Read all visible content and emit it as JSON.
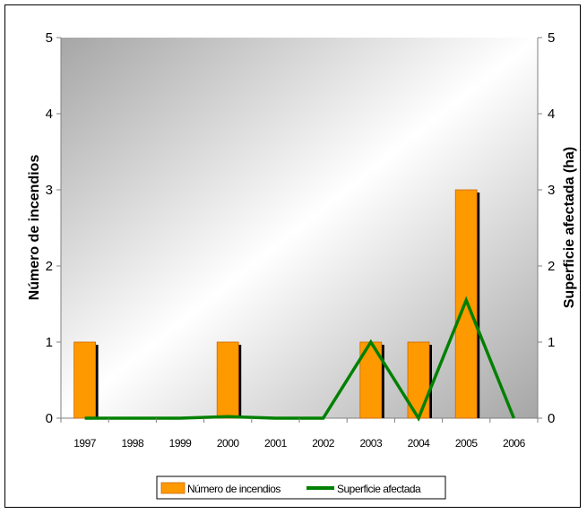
{
  "chart_data": {
    "type": "bar",
    "categories": [
      "1997",
      "1998",
      "1999",
      "2000",
      "2001",
      "2002",
      "2003",
      "2004",
      "2005",
      "2006"
    ],
    "series": [
      {
        "name": "Número de incendios",
        "type": "bar",
        "axis": "left",
        "color": "#FF9900",
        "values": [
          1,
          0,
          0,
          1,
          0,
          0,
          1,
          1,
          3,
          0
        ]
      },
      {
        "name": "Superficie afectada",
        "type": "line",
        "axis": "right",
        "color": "#008000",
        "values": [
          0,
          0,
          0,
          0.02,
          0,
          0,
          1,
          0,
          1.55,
          0
        ]
      }
    ],
    "ylabel": "Número de incendios",
    "y2label": "Superficie afectada (ha)",
    "ylim": [
      0,
      5
    ],
    "y2lim": [
      0,
      5
    ],
    "yticks": [
      "0",
      "1",
      "2",
      "3",
      "4",
      "5"
    ],
    "y2ticks": [
      "0",
      "1",
      "2",
      "3",
      "4",
      "5"
    ],
    "grid": false,
    "legend": "bottom"
  }
}
